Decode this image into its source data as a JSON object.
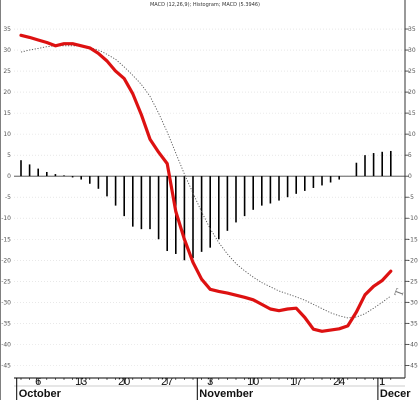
{
  "chart_data": {
    "type": "bar",
    "title": "MACD (12,26,9); Histogram; MACD (5.3946)",
    "ylim": [
      -48,
      40
    ],
    "y_ticks": [
      35,
      30,
      25,
      20,
      15,
      10,
      5,
      0,
      -5,
      -10,
      -15,
      -20,
      -25,
      -30,
      -35,
      -40,
      -45
    ],
    "x_ticks": [
      {
        "x": 2,
        "label": "6"
      },
      {
        "x": 7,
        "label": "13"
      },
      {
        "x": 12,
        "label": "20"
      },
      {
        "x": 17,
        "label": "27"
      },
      {
        "x": 22,
        "label": "3"
      },
      {
        "x": 27,
        "label": "10"
      },
      {
        "x": 32,
        "label": "17"
      },
      {
        "x": 37,
        "label": "24"
      },
      {
        "x": 42,
        "label": "1"
      }
    ],
    "months": [
      {
        "x": -0.5,
        "label": "October"
      },
      {
        "x": 20.5,
        "label": "November"
      },
      {
        "x": 41.5,
        "label": "Decer"
      }
    ],
    "annotation": "T",
    "x": [
      0,
      1,
      2,
      3,
      4,
      5,
      6,
      7,
      8,
      9,
      10,
      11,
      12,
      13,
      14,
      15,
      16,
      17,
      18,
      19,
      20,
      21,
      22,
      23,
      24,
      25,
      26,
      27,
      28,
      29,
      30,
      31,
      32,
      33,
      34,
      35,
      36,
      37,
      38,
      39,
      40,
      41,
      42,
      43
    ],
    "series": [
      {
        "role": "histogram",
        "color": "#000000",
        "values": [
          3.8,
          2.8,
          1.8,
          1.0,
          0.5,
          0.2,
          -0.3,
          -0.8,
          -1.8,
          -3.0,
          -4.8,
          -7.0,
          -9.5,
          -12.0,
          -12.6,
          -12.6,
          -15.0,
          -17.8,
          -18.5,
          -20.0,
          -19.5,
          -18.0,
          -17.0,
          -15.0,
          -13.0,
          -11.0,
          -9.5,
          -8.0,
          -7.0,
          -6.5,
          -5.8,
          -5.0,
          -4.2,
          -3.5,
          -2.8,
          -2.2,
          -1.5,
          -0.8,
          0.0,
          3.2,
          5.0,
          5.5,
          5.8,
          6.0
        ]
      },
      {
        "role": "macd",
        "color": "#dd1111",
        "values": [
          33.5,
          33.0,
          32.4,
          31.8,
          31.0,
          31.5,
          31.5,
          31.0,
          30.5,
          29.2,
          27.4,
          25.0,
          23.2,
          19.6,
          14.6,
          8.8,
          5.7,
          3.0,
          -8.4,
          -15.0,
          -20.5,
          -24.5,
          -26.9,
          -27.4,
          -27.8,
          -28.3,
          -28.8,
          -29.4,
          -30.5,
          -31.6,
          -32.0,
          -31.6,
          -31.4,
          -33.6,
          -36.4,
          -36.9,
          -36.6,
          -36.3,
          -35.6,
          -32.3,
          -28.2,
          -26.2,
          -24.8,
          -22.6
        ]
      },
      {
        "role": "signal",
        "color": "#555555",
        "dash": "dotted",
        "values": [
          29.5,
          30.0,
          30.4,
          30.8,
          31.0,
          31.0,
          31.0,
          30.9,
          30.6,
          30.0,
          29.0,
          27.8,
          26.0,
          24.0,
          21.8,
          19.0,
          15.0,
          10.5,
          5.5,
          0.5,
          -4.0,
          -8.5,
          -12.5,
          -15.8,
          -18.5,
          -20.8,
          -22.5,
          -24.0,
          -25.3,
          -26.3,
          -27.3,
          -28.0,
          -28.7,
          -29.5,
          -30.5,
          -31.5,
          -32.5,
          -33.2,
          -33.7,
          -33.5,
          -32.7,
          -31.4,
          -30.0,
          -28.5
        ]
      }
    ]
  }
}
